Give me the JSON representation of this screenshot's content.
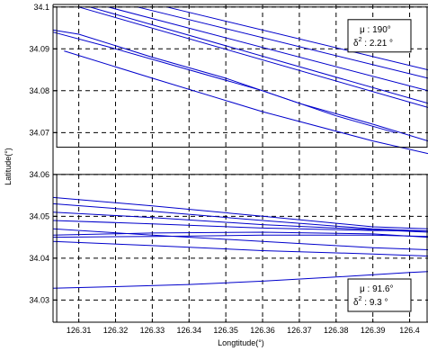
{
  "chart_data": {
    "type": "line",
    "title": "",
    "xlabel": "Longtitude(°)",
    "ylabel": "Latitude(°)",
    "xlim": [
      126.303,
      126.405
    ],
    "ylim": [
      34.0247,
      34.1006
    ],
    "xticks": [
      {
        "value": 126.31,
        "label": "126.31"
      },
      {
        "value": 126.32,
        "label": "126.32"
      },
      {
        "value": 126.33,
        "label": "126.33"
      },
      {
        "value": 126.34,
        "label": "126.34"
      },
      {
        "value": 126.35,
        "label": "126.35"
      },
      {
        "value": 126.36,
        "label": "126.36"
      },
      {
        "value": 126.37,
        "label": "126.37"
      },
      {
        "value": 126.38,
        "label": "126.38"
      },
      {
        "value": 126.39,
        "label": "126.39"
      },
      {
        "value": 126.4,
        "label": "126.4"
      }
    ],
    "yticks": [
      {
        "value": 34.03,
        "label": "34.03"
      },
      {
        "value": 34.04,
        "label": "34.04"
      },
      {
        "value": 34.05,
        "label": "34.05"
      },
      {
        "value": 34.06,
        "label": "34.06"
      },
      {
        "value": 34.07,
        "label": "34.07"
      },
      {
        "value": 34.08,
        "label": "34.08"
      },
      {
        "value": 34.09,
        "label": "34.09"
      },
      {
        "value": 34.1,
        "label": "34.1"
      }
    ],
    "grid": true,
    "line_color": "#0000cc",
    "regions": [
      {
        "x": [
          126.304,
          126.405
        ],
        "y": [
          34.0665,
          34.1
        ],
        "annotation": {
          "mu": "μ : 190°",
          "sigma_base": "δ",
          "sigma_exp": "2",
          "sigma_rest": " : 2.21 °"
        },
        "annotation_anchor": "top-right"
      },
      {
        "x": [
          126.304,
          126.405
        ],
        "y": [
          34.0247,
          34.06
        ],
        "annotation": {
          "mu": "μ : 91.6°",
          "sigma_base": "δ",
          "sigma_exp": "2",
          "sigma_rest": " : 9.3 °"
        },
        "annotation_anchor": "bottom-right"
      }
    ],
    "series": [
      {
        "x": [
          126.31,
          126.405
        ],
        "y": [
          34.1,
          34.076
        ]
      },
      {
        "x": [
          126.313,
          126.405
        ],
        "y": [
          34.1,
          34.077
        ]
      },
      {
        "x": [
          126.318,
          126.405
        ],
        "y": [
          34.1,
          34.08
        ]
      },
      {
        "x": [
          126.326,
          126.405
        ],
        "y": [
          34.1,
          34.083
        ]
      },
      {
        "x": [
          126.334,
          126.405
        ],
        "y": [
          34.1,
          34.085
        ]
      },
      {
        "x": [
          126.303,
          126.31,
          126.33,
          126.35,
          126.37,
          126.39,
          126.405
        ],
        "y": [
          34.0945,
          34.0935,
          34.088,
          34.083,
          34.077,
          34.072,
          34.068
        ]
      },
      {
        "x": [
          126.303,
          126.318,
          126.34,
          126.36,
          126.38,
          126.396
        ],
        "y": [
          34.094,
          34.0905,
          34.085,
          34.08,
          34.074,
          34.07
        ]
      },
      {
        "x": [
          126.306,
          126.33,
          126.36,
          126.39,
          126.405
        ],
        "y": [
          34.0895,
          34.083,
          34.075,
          34.068,
          34.065
        ]
      },
      {
        "x": [
          126.303,
          126.33,
          126.36,
          126.39,
          126.405
        ],
        "y": [
          34.0545,
          34.0525,
          34.05,
          34.0475,
          34.047
        ]
      },
      {
        "x": [
          126.303,
          126.33,
          126.36,
          126.39,
          126.405
        ],
        "y": [
          34.053,
          34.0512,
          34.049,
          34.047,
          34.0465
        ]
      },
      {
        "x": [
          126.303,
          126.33,
          126.36,
          126.39,
          126.405
        ],
        "y": [
          34.051,
          34.0497,
          34.048,
          34.0468,
          34.0462
        ]
      },
      {
        "x": [
          126.303,
          126.33,
          126.36,
          126.39,
          126.405
        ],
        "y": [
          34.049,
          34.0482,
          34.0472,
          34.0466,
          34.0465
        ]
      },
      {
        "x": [
          126.303,
          126.33,
          126.36,
          126.39,
          126.405
        ],
        "y": [
          34.0455,
          34.046,
          34.0462,
          34.0458,
          34.045
        ]
      },
      {
        "x": [
          126.303,
          126.33,
          126.36,
          126.39,
          126.405
        ],
        "y": [
          34.045,
          34.0452,
          34.0455,
          34.0455,
          34.0452
        ]
      },
      {
        "x": [
          126.303,
          126.33,
          126.36,
          126.39,
          126.405
        ],
        "y": [
          34.047,
          34.0455,
          34.044,
          34.0425,
          34.042
        ]
      },
      {
        "x": [
          126.303,
          126.33,
          126.36,
          126.39,
          126.405
        ],
        "y": [
          34.044,
          34.043,
          34.0418,
          34.041,
          34.0405
        ]
      },
      {
        "x": [
          126.303,
          126.32,
          126.34,
          126.36,
          126.38,
          126.4,
          126.405
        ],
        "y": [
          34.0328,
          34.0332,
          34.0337,
          34.0345,
          34.0355,
          34.0366,
          34.0368
        ]
      }
    ]
  }
}
